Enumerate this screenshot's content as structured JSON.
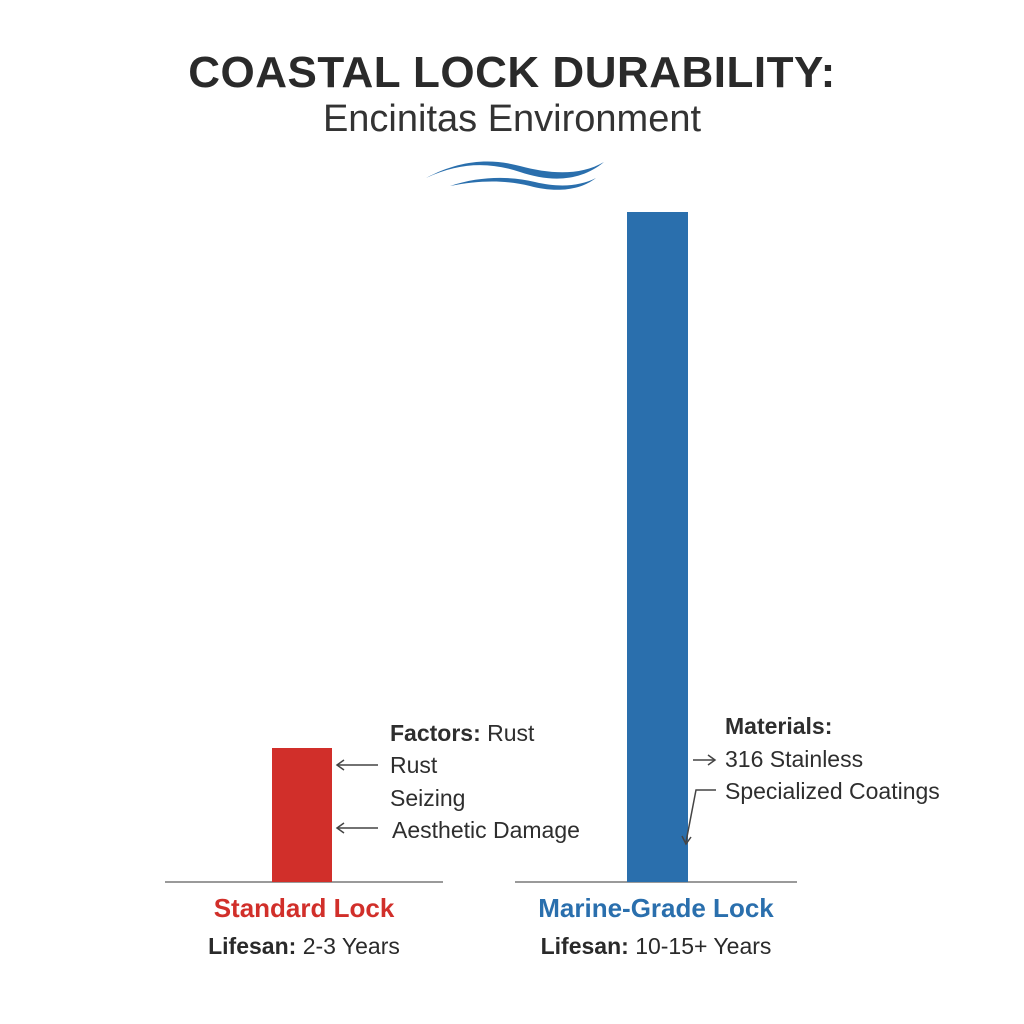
{
  "chart_data": {
    "type": "bar",
    "title": "COASTAL LOCK DURABILITY:",
    "subtitle": "Encinitas Environment",
    "categories": [
      "Standard Lock",
      "Marine-Grade Lock"
    ],
    "values": [
      2.5,
      12.5
    ],
    "colors": [
      "#d12f2a",
      "#2a6fad"
    ],
    "lifespan": [
      {
        "prefix": "Lifesan:",
        "text": "2-3 Years"
      },
      {
        "prefix": "Lifesan:",
        "text": "10-15+ Years"
      }
    ],
    "annotations": {
      "standard": {
        "heading": "Factors:",
        "heading_rest": "Rust",
        "items": [
          "Rust",
          "Seizing",
          "Aesthetic Damage"
        ]
      },
      "marine": {
        "heading": "Materials:",
        "items": [
          "316 Stainless",
          "Specialized Coatings"
        ]
      }
    },
    "icon": "wave-icon"
  }
}
